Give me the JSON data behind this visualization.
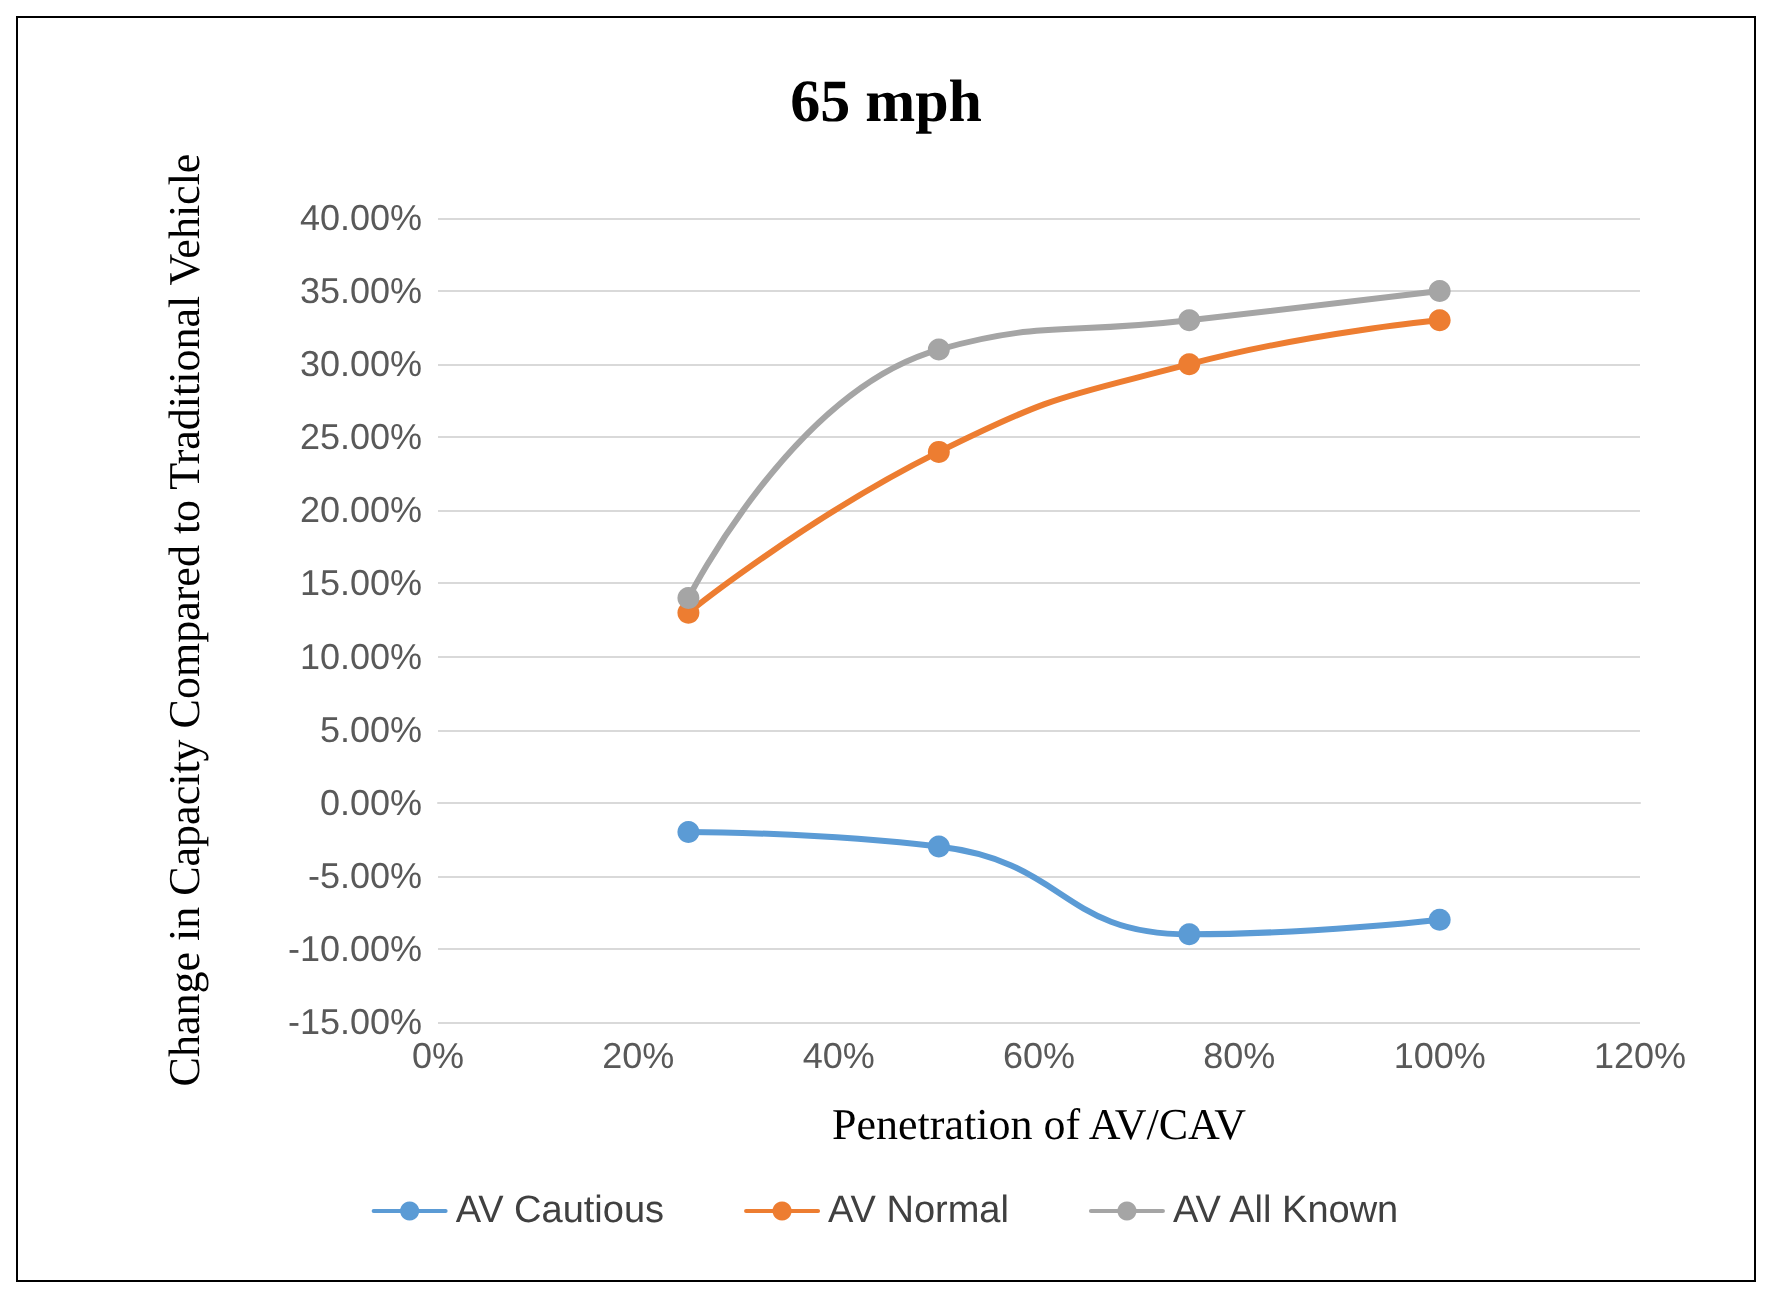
{
  "chart_data": {
    "type": "line",
    "title": "65 mph",
    "xlabel": "Penetration of AV/CAV",
    "ylabel": "Change in Capacity Compared to Traditional Vehicle",
    "x": [
      25,
      50,
      75,
      100
    ],
    "series": [
      {
        "name": "AV Cautious",
        "color": "#5b9bd5",
        "values": [
          -2,
          -3,
          -9,
          -8
        ]
      },
      {
        "name": "AV Normal",
        "color": "#ed7d31",
        "values": [
          13,
          24,
          30,
          33
        ]
      },
      {
        "name": "AV All Known",
        "color": "#a5a5a5",
        "values": [
          14,
          31,
          33,
          35
        ]
      }
    ],
    "xlim": [
      0,
      120
    ],
    "xticks": [
      {
        "value": 0,
        "label": "0%"
      },
      {
        "value": 20,
        "label": "20%"
      },
      {
        "value": 40,
        "label": "40%"
      },
      {
        "value": 60,
        "label": "60%"
      },
      {
        "value": 80,
        "label": "80%"
      },
      {
        "value": 100,
        "label": "100%"
      },
      {
        "value": 120,
        "label": "120%"
      }
    ],
    "ylim": [
      -15,
      40
    ],
    "yticks": [
      {
        "value": -15,
        "label": "-15.00%"
      },
      {
        "value": -10,
        "label": "-10.00%"
      },
      {
        "value": -5,
        "label": "-5.00%"
      },
      {
        "value": 0,
        "label": "0.00%"
      },
      {
        "value": 5,
        "label": "5.00%"
      },
      {
        "value": 10,
        "label": "10.00%"
      },
      {
        "value": 15,
        "label": "15.00%"
      },
      {
        "value": 20,
        "label": "20.00%"
      },
      {
        "value": 25,
        "label": "25.00%"
      },
      {
        "value": 30,
        "label": "30.00%"
      },
      {
        "value": 35,
        "label": "35.00%"
      },
      {
        "value": 40,
        "label": "40.00%"
      }
    ],
    "grid": "y",
    "legend": "bottom",
    "marker": "circle",
    "line_style": "solid"
  }
}
